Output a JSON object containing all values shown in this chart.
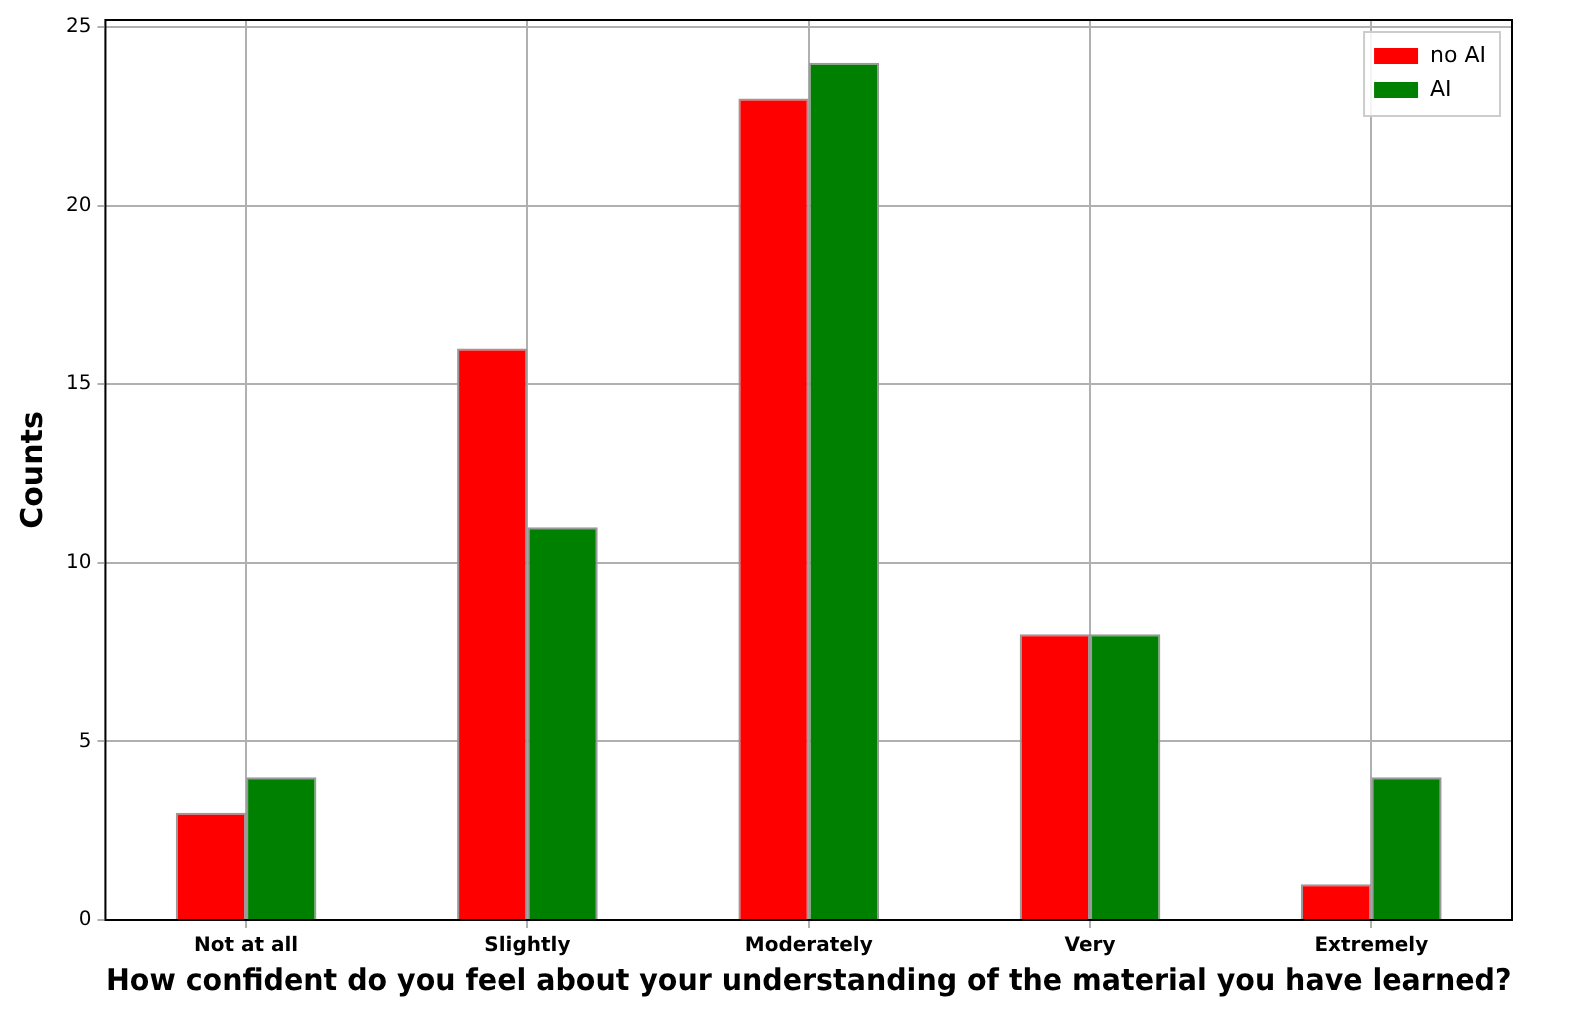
{
  "chart_data": {
    "type": "bar",
    "xlabel": "How confident do you feel about your understanding of the material you have learned?",
    "ylabel": "Counts",
    "categories": [
      "Not at all",
      "Slightly",
      "Moderately",
      "Very",
      "Extremely"
    ],
    "series": [
      {
        "name": "no AI",
        "color": "#ff0000",
        "values": [
          3,
          16,
          23,
          8,
          1
        ]
      },
      {
        "name": "AI",
        "color": "#008000",
        "values": [
          4,
          11,
          24,
          8,
          4
        ]
      }
    ],
    "ylim": [
      0,
      25.2
    ],
    "yticks": [
      0,
      5,
      10,
      15,
      20,
      25
    ],
    "grid": true,
    "legend": "top right"
  }
}
